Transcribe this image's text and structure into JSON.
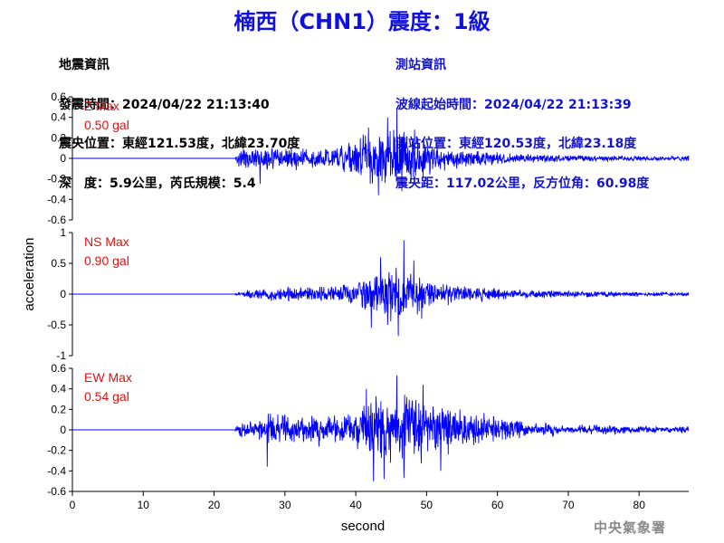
{
  "title": "楠西（CHN1）震度：1級",
  "quake_info": {
    "heading": "地震資訊",
    "time": "發震時間：2024/04/22 21:13:40",
    "location": "震央位置：東經121.53度，北緯23.70度",
    "depth_mag": "深　度：5.9公里，芮氏規模：5.4"
  },
  "station_info": {
    "heading": "測站資訊",
    "wave_start": "波線起始時間：2024/04/22 21:13:39",
    "location": "測站位置：東經120.53度，北緯23.18度",
    "distance": "震央距：117.02公里，反方位角：60.98度"
  },
  "watermark": "中央氣象署",
  "colors": {
    "title": "#1010e0",
    "trace": "#0000ff",
    "max_label": "#e01010",
    "station": "#1414d0"
  },
  "chart_data": {
    "type": "line",
    "xlabel": "second",
    "ylabel": "acceleration",
    "xlim": [
      0,
      87
    ],
    "xticks": [
      0,
      10,
      20,
      30,
      40,
      50,
      60,
      70,
      80
    ],
    "xtick_labels": [
      "0",
      "10",
      "20",
      "30",
      "40",
      "50",
      "60",
      "70",
      "80"
    ],
    "panels": [
      {
        "component": "Z",
        "label": "Z Max",
        "max_text": "0.50 gal",
        "peak": 0.5,
        "ylim": [
          -0.6,
          0.6
        ],
        "yticks": [
          0.6,
          0.4,
          0.2,
          0,
          -0.2,
          -0.4,
          -0.6
        ],
        "ytick_labels": [
          "0.6",
          "0.4",
          "0.2",
          "0",
          "-0.2",
          "-0.4",
          "-0.6"
        ],
        "onset_s": 23.0,
        "envelope": [
          [
            0,
            0.004
          ],
          [
            22.8,
            0.004
          ],
          [
            23.5,
            0.1
          ],
          [
            25,
            0.12
          ],
          [
            27,
            0.14
          ],
          [
            30,
            0.13
          ],
          [
            33,
            0.11
          ],
          [
            36,
            0.12
          ],
          [
            39,
            0.2
          ],
          [
            42,
            0.28
          ],
          [
            45,
            0.38
          ],
          [
            47,
            0.3
          ],
          [
            49,
            0.22
          ],
          [
            52,
            0.16
          ],
          [
            56,
            0.1
          ],
          [
            60,
            0.07
          ],
          [
            65,
            0.05
          ],
          [
            70,
            0.04
          ],
          [
            80,
            0.03
          ],
          [
            87,
            0.03
          ]
        ],
        "peaks": [
          [
            45.8,
            0.49
          ],
          [
            43.2,
            -0.36
          ],
          [
            44.5,
            0.4
          ],
          [
            46.5,
            -0.32
          ],
          [
            41.8,
            0.3
          ],
          [
            48.3,
            0.28
          ],
          [
            26.5,
            -0.25
          ]
        ]
      },
      {
        "component": "NS",
        "label": "NS Max",
        "max_text": "0.90 gal",
        "peak": 0.9,
        "ylim": [
          -1,
          1
        ],
        "yticks": [
          1,
          0.5,
          0,
          -0.5,
          -1
        ],
        "ytick_labels": [
          "1",
          "0.5",
          "0",
          "-0.5",
          "-1"
        ],
        "onset_s": 23.0,
        "envelope": [
          [
            0,
            0.004
          ],
          [
            22.8,
            0.004
          ],
          [
            23.5,
            0.05
          ],
          [
            26,
            0.1
          ],
          [
            30,
            0.14
          ],
          [
            34,
            0.14
          ],
          [
            37,
            0.16
          ],
          [
            40,
            0.3
          ],
          [
            43,
            0.45
          ],
          [
            46,
            0.5
          ],
          [
            48,
            0.4
          ],
          [
            50,
            0.28
          ],
          [
            53,
            0.2
          ],
          [
            57,
            0.14
          ],
          [
            62,
            0.09
          ],
          [
            68,
            0.07
          ],
          [
            75,
            0.05
          ],
          [
            87,
            0.04
          ]
        ],
        "peaks": [
          [
            46.8,
            0.88
          ],
          [
            46.0,
            -0.68
          ],
          [
            43.5,
            0.6
          ],
          [
            44.5,
            -0.5
          ],
          [
            42.2,
            -0.55
          ],
          [
            48.2,
            0.55
          ],
          [
            49.3,
            -0.4
          ]
        ]
      },
      {
        "component": "EW",
        "label": "EW Max",
        "max_text": "0.54 gal",
        "peak": 0.54,
        "ylim": [
          -0.6,
          0.6
        ],
        "yticks": [
          0.6,
          0.4,
          0.2,
          0,
          -0.2,
          -0.4,
          -0.6
        ],
        "ytick_labels": [
          "0.6",
          "0.4",
          "0.2",
          "0",
          "-0.2",
          "-0.4",
          "-0.6"
        ],
        "onset_s": 23.0,
        "envelope": [
          [
            0,
            0.004
          ],
          [
            22.8,
            0.004
          ],
          [
            23.5,
            0.08
          ],
          [
            26,
            0.14
          ],
          [
            28,
            0.18
          ],
          [
            31,
            0.16
          ],
          [
            35,
            0.18
          ],
          [
            38,
            0.22
          ],
          [
            41,
            0.3
          ],
          [
            44,
            0.38
          ],
          [
            47,
            0.4
          ],
          [
            50,
            0.35
          ],
          [
            53,
            0.3
          ],
          [
            56,
            0.22
          ],
          [
            60,
            0.14
          ],
          [
            65,
            0.09
          ],
          [
            70,
            0.06
          ],
          [
            78,
            0.05
          ],
          [
            87,
            0.04
          ]
        ],
        "peaks": [
          [
            45.8,
            0.53
          ],
          [
            42.5,
            -0.5
          ],
          [
            44.0,
            -0.48
          ],
          [
            46.8,
            -0.47
          ],
          [
            49.5,
            0.44
          ],
          [
            41.5,
            0.4
          ],
          [
            27.5,
            -0.36
          ],
          [
            52.0,
            -0.4
          ]
        ]
      }
    ]
  }
}
